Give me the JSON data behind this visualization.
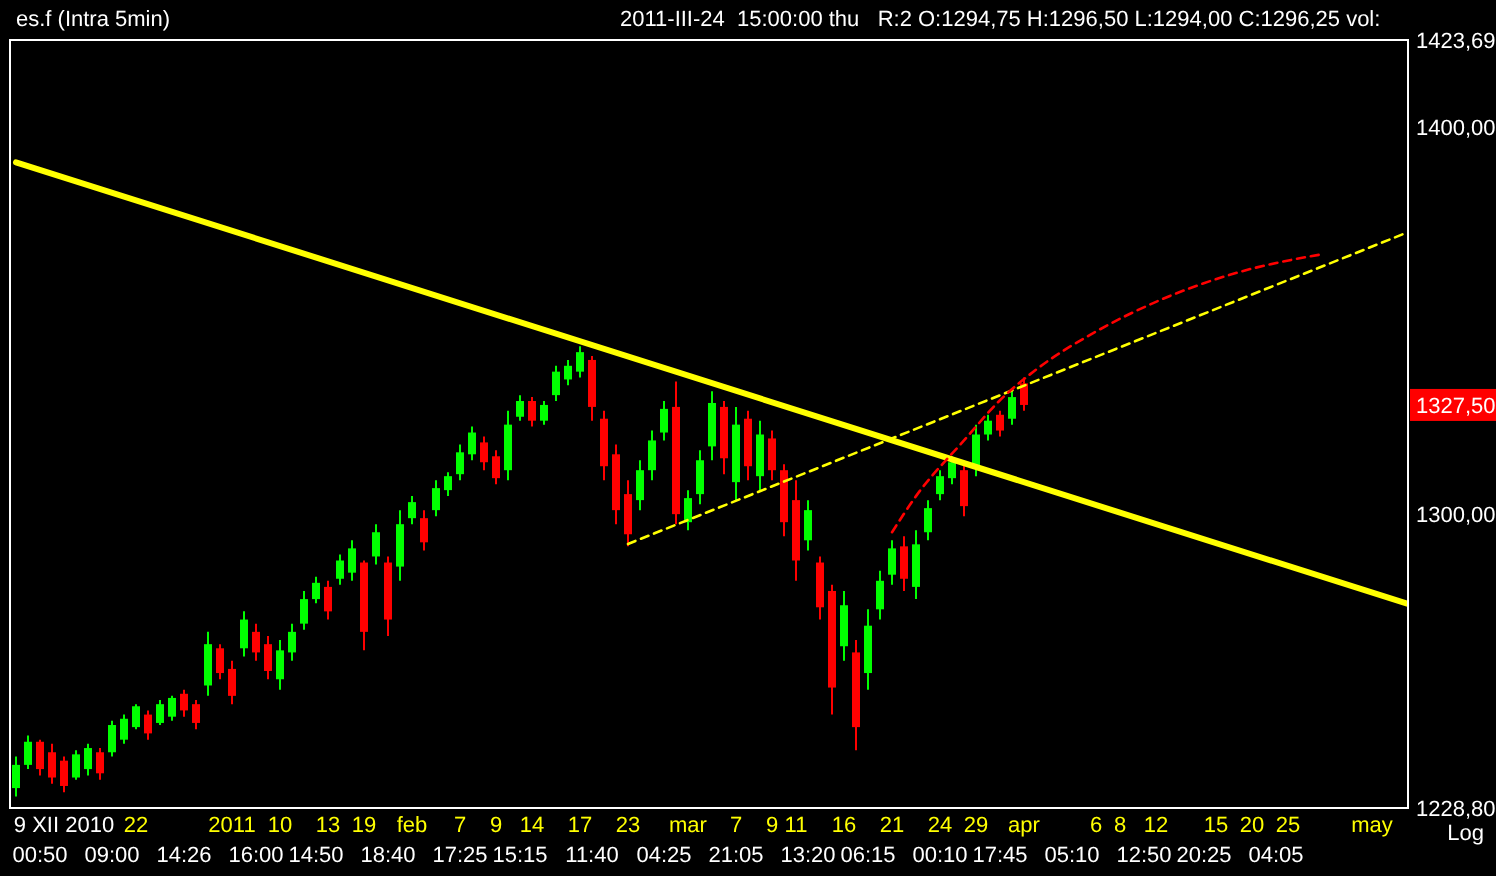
{
  "chart_data": {
    "type": "candlestick",
    "title": "es.f (Intra 5min)",
    "subtitle": "2011-III-24  15:00:00 thu   R:2 O:1294,75 H:1296,50 L:1294,00 C:1296,25 vol:",
    "annotations": [
      "Log",
      {
        "text": "1327,50",
        "y": 1327.5
      }
    ],
    "log": "y",
    "ylim": [
      1228.8,
      1423.69
    ],
    "yticks": [
      {
        "value": 1228.8,
        "label": "1228,80"
      },
      {
        "value": 1300,
        "label": "1300,00"
      },
      {
        "value": 1400,
        "label": "1400,00"
      },
      {
        "value": 1423.69,
        "label": "1423,69"
      }
    ],
    "categories": [
      null,
      null,
      "\n00:50",
      null,
      "9 XII 2010",
      null,
      null,
      null,
      "\n09:00",
      null,
      "22",
      null,
      null,
      null,
      "\n14:26",
      null,
      null,
      null,
      "2011",
      null,
      "\n16:00",
      null,
      "10",
      null,
      null,
      "\n14:50",
      "13",
      null,
      null,
      "19",
      null,
      "\n18:40",
      null,
      "feb",
      null,
      null,
      null,
      "7\n17:25",
      null,
      null,
      "9",
      null,
      "\n15:15",
      "14",
      null,
      null,
      null,
      "17",
      "\n11:40",
      null,
      null,
      "23",
      null,
      null,
      "\n04:25",
      null,
      "mar",
      null,
      null,
      null,
      "7\n21:05",
      null,
      null,
      "9",
      null,
      "11",
      "\n13:20",
      null,
      null,
      "16",
      null,
      "\n06:15",
      null,
      "21",
      null,
      null,
      null,
      "24\n00:10",
      null,
      null,
      "29",
      null,
      "\n17:45",
      null,
      "apr",
      null,
      null,
      null,
      "\n05:10",
      null,
      "6",
      null,
      "8",
      null,
      "\n12:50",
      "12",
      null,
      null,
      null,
      "\n20:25",
      "15",
      null,
      null,
      "20",
      null,
      "\n04:05",
      "25",
      null,
      null,
      null,
      null,
      null,
      null,
      "may",
      null,
      null,
      null
    ],
    "ohlc": [
      [
        1233.5,
        1241,
        1231.5,
        1239
      ],
      [
        1239,
        1246,
        1238,
        1244.5
      ],
      [
        1244.5,
        1245,
        1236.5,
        1238
      ],
      [
        1242,
        1244,
        1234.5,
        1236
      ],
      [
        1240,
        1241,
        1232.5,
        1234
      ],
      [
        1236,
        1242.5,
        1235.5,
        1241.5
      ],
      [
        1238,
        1244,
        1236.5,
        1243
      ],
      [
        1242,
        1243,
        1235.5,
        1237
      ],
      [
        1242,
        1249.5,
        1241,
        1248.5
      ],
      [
        1245,
        1251,
        1244,
        1250
      ],
      [
        1248,
        1253.5,
        1247.5,
        1253
      ],
      [
        1251,
        1252,
        1245,
        1246.5
      ],
      [
        1249,
        1254.5,
        1248.5,
        1253.5
      ],
      [
        1250.5,
        1255.5,
        1249.5,
        1255
      ],
      [
        1256,
        1257,
        1250.5,
        1252
      ],
      [
        1253.5,
        1254.5,
        1247.5,
        1249
      ],
      [
        1258,
        1271,
        1255.5,
        1268
      ],
      [
        1267,
        1268,
        1259.5,
        1261
      ],
      [
        1262,
        1264,
        1253.5,
        1255.5
      ],
      [
        1267,
        1276,
        1265,
        1274
      ],
      [
        1271,
        1273,
        1264,
        1266
      ],
      [
        1268,
        1270,
        1259.5,
        1261.5
      ],
      [
        1259.5,
        1269,
        1257,
        1266.5
      ],
      [
        1266,
        1273,
        1264,
        1271
      ],
      [
        1273,
        1281,
        1271.5,
        1279
      ],
      [
        1279,
        1284.5,
        1278,
        1283
      ],
      [
        1282,
        1283.5,
        1274,
        1276
      ],
      [
        1284,
        1290,
        1282.5,
        1288.5
      ],
      [
        1285.5,
        1293.5,
        1283.5,
        1291.5
      ],
      [
        1288,
        1288.5,
        1266.5,
        1271
      ],
      [
        1289.5,
        1297.5,
        1287.5,
        1295.5
      ],
      [
        1288,
        1289.5,
        1270,
        1274
      ],
      [
        1287,
        1301,
        1283.5,
        1297.5
      ],
      [
        1299,
        1304.5,
        1297.5,
        1303
      ],
      [
        1299,
        1301,
        1291,
        1293
      ],
      [
        1301,
        1308.5,
        1299.5,
        1306.5
      ],
      [
        1306,
        1310.5,
        1304.5,
        1309.5
      ],
      [
        1310,
        1317.5,
        1308.5,
        1315.5
      ],
      [
        1315,
        1322,
        1313.5,
        1320.5
      ],
      [
        1318,
        1319.5,
        1311,
        1313
      ],
      [
        1314.5,
        1316,
        1307.5,
        1309
      ],
      [
        1311,
        1326,
        1308.5,
        1322.5
      ],
      [
        1324.5,
        1330,
        1323.5,
        1328.5
      ],
      [
        1328.5,
        1329.5,
        1322,
        1323.5
      ],
      [
        1323.5,
        1328.5,
        1322.5,
        1327.5
      ],
      [
        1330,
        1337.5,
        1328.5,
        1336
      ],
      [
        1334,
        1339,
        1332.5,
        1337.5
      ],
      [
        1336,
        1342.5,
        1334.5,
        1341
      ],
      [
        1339,
        1340,
        1323.5,
        1327
      ],
      [
        1324,
        1326,
        1308.5,
        1312
      ],
      [
        1315,
        1317.5,
        1297.5,
        1301
      ],
      [
        1305,
        1308.5,
        1292,
        1295
      ],
      [
        1303.5,
        1313.5,
        1301,
        1311
      ],
      [
        1311,
        1321,
        1308.5,
        1318.5
      ],
      [
        1320.5,
        1328.5,
        1318.5,
        1326.5
      ],
      [
        1327,
        1333.5,
        1297.5,
        1300
      ],
      [
        1298,
        1306,
        1296,
        1304
      ],
      [
        1305,
        1316,
        1302.5,
        1313.5
      ],
      [
        1317,
        1331,
        1313.5,
        1328
      ],
      [
        1327,
        1328.5,
        1310,
        1314
      ],
      [
        1308,
        1327,
        1303.5,
        1322.5
      ],
      [
        1324,
        1326,
        1308.5,
        1312
      ],
      [
        1309.5,
        1323.5,
        1306,
        1320
      ],
      [
        1319,
        1321,
        1308.5,
        1311
      ],
      [
        1311,
        1312.5,
        1294.5,
        1298
      ],
      [
        1303.5,
        1308.5,
        1283.5,
        1288.5
      ],
      [
        1293.5,
        1303.5,
        1291,
        1301
      ],
      [
        1288,
        1289.5,
        1274,
        1277
      ],
      [
        1281,
        1282.5,
        1251,
        1257.5
      ],
      [
        1267.5,
        1281,
        1264,
        1277.5
      ],
      [
        1266,
        1269,
        1242.5,
        1248
      ],
      [
        1261,
        1276.5,
        1257,
        1272.5
      ],
      [
        1276.5,
        1286,
        1274,
        1283.5
      ],
      [
        1285,
        1293.5,
        1282.5,
        1291.5
      ],
      [
        1292,
        1294.5,
        1281,
        1284
      ],
      [
        1282,
        1296,
        1279,
        1292.5
      ],
      [
        1295.5,
        1303.5,
        1293.5,
        1301.5
      ],
      [
        1305,
        1311,
        1303.5,
        1309.5
      ],
      [
        1309,
        1314.5,
        1307.5,
        1313
      ],
      [
        1311,
        1312.5,
        1299.5,
        1302
      ],
      [
        1312,
        1322.5,
        1309.5,
        1320
      ],
      [
        1320,
        1325,
        1318.5,
        1323.5
      ],
      [
        1325,
        1326,
        1319.5,
        1321
      ],
      [
        1324,
        1331,
        1322.5,
        1329.5
      ],
      [
        1333,
        1334.5,
        1326,
        1327.5
      ],
      null,
      null,
      null,
      null,
      null,
      null,
      null,
      null,
      null,
      null,
      null,
      null,
      null,
      null,
      null,
      null,
      null,
      null,
      null,
      null,
      null,
      null,
      null,
      null,
      null,
      null,
      null,
      null,
      null,
      null,
      null,
      null
    ],
    "colors": [
      "#00ff00",
      "#00ff00",
      "#ff0000",
      "#ff0000",
      "#ff0000",
      "#00ff00",
      "#00ff00",
      "#ff0000",
      "#00ff00",
      "#00ff00",
      "#00ff00",
      "#ff0000",
      "#00ff00",
      "#00ff00",
      "#ff0000",
      "#ff0000",
      "#00ff00",
      "#ff0000",
      "#ff0000",
      "#00ff00",
      "#ff0000",
      "#ff0000",
      "#00ff00",
      "#00ff00",
      "#00ff00",
      "#00ff00",
      "#ff0000",
      "#00ff00",
      "#00ff00",
      "#ff0000",
      "#00ff00",
      "#ff0000",
      "#00ff00",
      "#00ff00",
      "#ff0000",
      "#00ff00",
      "#00ff00",
      "#00ff00",
      "#00ff00",
      "#ff0000",
      "#ff0000",
      "#00ff00",
      "#00ff00",
      "#ff0000",
      "#00ff00",
      "#00ff00",
      "#00ff00",
      "#00ff00",
      "#ff0000",
      "#ff0000",
      "#ff0000",
      "#ff0000",
      "#00ff00",
      "#00ff00",
      "#00ff00",
      "#ff0000",
      "#00ff00",
      "#00ff00",
      "#00ff00",
      "#ff0000",
      "#00ff00",
      "#ff0000",
      "#00ff00",
      "#ff0000",
      "#ff0000",
      "#ff0000",
      "#00ff00",
      "#ff0000",
      "#ff0000",
      "#00ff00",
      "#ff0000",
      "#00ff00",
      "#00ff00",
      "#00ff00",
      "#ff0000",
      "#00ff00",
      "#00ff00",
      "#00ff00",
      "#00ff00",
      "#ff0000",
      "#00ff00",
      "#00ff00",
      "#ff0000",
      "#00ff00",
      "#ff0000",
      null,
      null,
      null,
      null,
      null,
      null,
      null,
      null,
      null,
      null,
      null,
      null,
      null,
      null,
      null,
      null,
      null,
      null,
      null,
      null,
      null,
      null,
      null,
      null,
      null,
      null,
      null,
      null,
      null,
      null,
      null,
      null
    ],
    "series": [
      {
        "type": "line",
        "color": "#ffff00",
        "line_style": "solid",
        "values": [
          1390.7,
          null,
          null,
          null,
          null,
          null,
          null,
          null,
          null,
          null,
          null,
          null,
          null,
          null,
          null,
          null,
          null,
          null,
          null,
          null,
          null,
          null,
          null,
          null,
          null,
          null,
          null,
          null,
          null,
          null,
          null,
          null,
          null,
          null,
          null,
          null,
          null,
          null,
          null,
          null,
          null,
          null,
          null,
          null,
          null,
          null,
          null,
          null,
          null,
          null,
          null,
          null,
          null,
          null,
          null,
          null,
          null,
          null,
          null,
          null,
          null,
          null,
          null,
          null,
          null,
          null,
          null,
          null,
          null,
          null,
          null,
          null,
          null,
          null,
          null,
          null,
          null,
          null,
          null,
          null,
          null,
          null,
          null,
          null,
          null,
          null,
          null,
          null,
          null,
          null,
          null,
          null,
          null,
          null,
          null,
          null,
          null,
          null,
          null,
          null,
          null,
          null,
          null,
          null,
          null,
          null,
          null,
          null,
          null,
          null,
          null,
          null,
          null,
          null,
          null,
          null,
          1277.8
        ]
      },
      {
        "type": "line",
        "color": "#ffff00",
        "line_style": "dashed",
        "values": [
          null,
          null,
          null,
          null,
          null,
          null,
          null,
          null,
          null,
          null,
          null,
          null,
          null,
          null,
          null,
          null,
          null,
          null,
          null,
          null,
          null,
          null,
          null,
          null,
          null,
          null,
          null,
          null,
          null,
          null,
          null,
          null,
          null,
          null,
          null,
          null,
          null,
          null,
          null,
          null,
          null,
          null,
          null,
          null,
          null,
          null,
          null,
          null,
          null,
          null,
          null,
          1292.6,
          null,
          null,
          null,
          null,
          null,
          null,
          null,
          null,
          null,
          null,
          null,
          null,
          null,
          null,
          null,
          null,
          null,
          null,
          null,
          null,
          null,
          null,
          null,
          null,
          null,
          null,
          null,
          null,
          null,
          null,
          null,
          null,
          null,
          null,
          null,
          null,
          null,
          null,
          null,
          null,
          null,
          null,
          null,
          null,
          null,
          null,
          null,
          null,
          null,
          null,
          null,
          null,
          null,
          null,
          null,
          null,
          null,
          null,
          null,
          null,
          null,
          null,
          null,
          null,
          1372.2
        ]
      },
      {
        "type": "line",
        "color": "#ff0000",
        "line_style": "dashed",
        "values": [
          null,
          null,
          null,
          null,
          null,
          null,
          null,
          null,
          null,
          null,
          null,
          null,
          null,
          null,
          null,
          null,
          null,
          null,
          null,
          null,
          null,
          null,
          null,
          null,
          null,
          null,
          null,
          null,
          null,
          null,
          null,
          null,
          null,
          null,
          null,
          null,
          null,
          null,
          null,
          null,
          null,
          null,
          null,
          null,
          null,
          null,
          null,
          null,
          null,
          null,
          null,
          null,
          null,
          null,
          null,
          null,
          null,
          null,
          null,
          null,
          null,
          null,
          null,
          null,
          null,
          null,
          null,
          null,
          null,
          null,
          null,
          null,
          null,
          1295.5,
          null,
          1304.5,
          null,
          null,
          null,
          1318.5,
          null,
          null,
          1328.7,
          null,
          null,
          1336.5,
          null,
          null,
          null,
          null,
          1346.3,
          null,
          null,
          null,
          null,
          1354,
          null,
          null,
          null,
          null,
          null,
          null,
          1361.8,
          null,
          null,
          null,
          null,
          null,
          null,
          1366.5,
          null,
          null,
          null,
          null,
          null,
          null,
          null
        ]
      }
    ]
  }
}
